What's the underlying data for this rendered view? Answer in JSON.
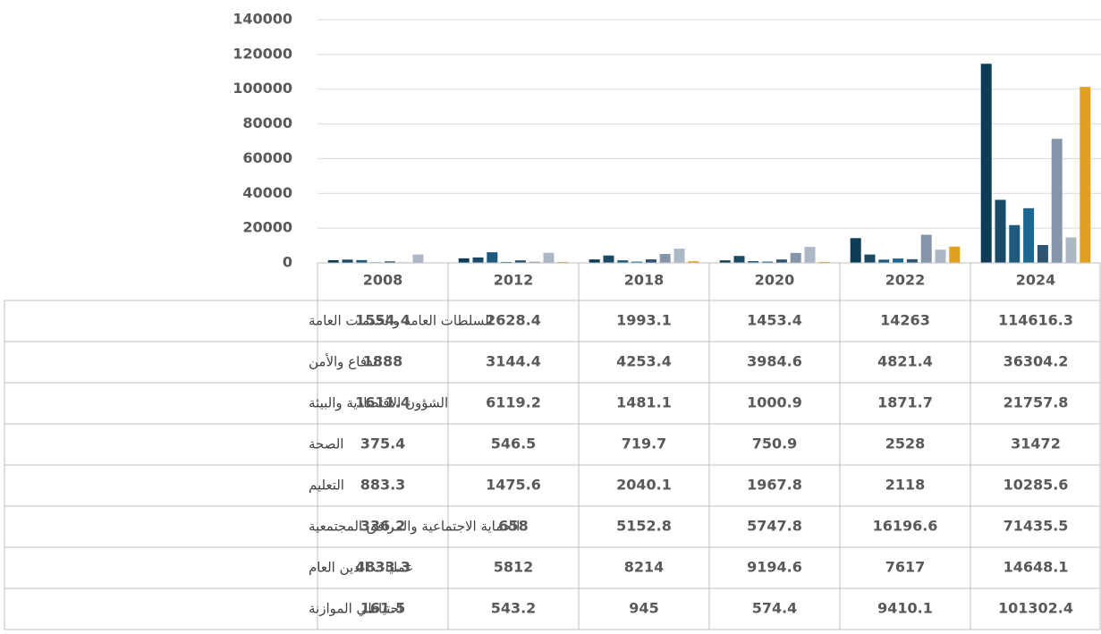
{
  "chart_data": {
    "type": "bar",
    "categories": [
      "2008",
      "2012",
      "2018",
      "2020",
      "2022",
      "2024"
    ],
    "series": [
      {
        "name": "السلطات العامة والخدمات العامة",
        "color": "#0e3b55",
        "values": [
          1554.4,
          2628.4,
          1993.1,
          1453.4,
          14263,
          114616.3
        ]
      },
      {
        "name": "الدفاع والأمن",
        "color": "#1a4a66",
        "values": [
          1888,
          3144.4,
          4253.4,
          3984.6,
          4821.4,
          36304.2
        ]
      },
      {
        "name": "الشؤون الاقتصادية والبيئة",
        "color": "#1d5a7c",
        "values": [
          1611.4,
          6119.2,
          1481.1,
          1000.9,
          1871.7,
          21757.8
        ]
      },
      {
        "name": "الصحة",
        "color": "#1b6890",
        "values": [
          375.4,
          546.5,
          719.7,
          750.9,
          2528,
          31472
        ]
      },
      {
        "name": "التعليم",
        "color": "#2f5470",
        "values": [
          883.3,
          1475.6,
          2040.1,
          1967.8,
          2118,
          10285.6
        ]
      },
      {
        "name": "الحماية الاجتماعية والمرافق المجتمعية",
        "color": "#8596aa",
        "values": [
          336.2,
          658,
          5152.8,
          5747.8,
          16196.6,
          71435.5
        ]
      },
      {
        "name": "عمليات الدين العام",
        "color": "#adb8c6",
        "values": [
          4833.3,
          5812,
          8214,
          9194.6,
          7617,
          14648.1
        ]
      },
      {
        "name": "احتياطي الموازنة",
        "color": "#e0a020",
        "values": [
          161.5,
          543.2,
          945,
          574.4,
          9410.1,
          101302.4
        ]
      }
    ],
    "ylim": [
      0,
      140000
    ],
    "yticks": [
      0,
      20000,
      40000,
      60000,
      80000,
      100000,
      120000,
      140000
    ],
    "grid": true
  }
}
